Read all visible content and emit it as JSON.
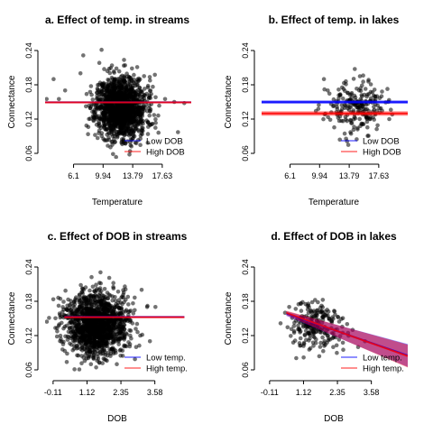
{
  "chart_data": [
    {
      "type": "scatter",
      "title": "a. Effect of temp. in streams",
      "xlabel": "Temperature",
      "ylabel": "Connectance",
      "xlim": [
        2.4,
        21.4
      ],
      "ylim": [
        0.06,
        0.24
      ],
      "xticks": [
        6.1,
        9.94,
        13.79,
        17.63
      ],
      "xtick_labels": [
        "6.1",
        "9.94",
        "13.79",
        "17.63"
      ],
      "yticks": [
        0.06,
        0.12,
        0.18,
        0.24
      ],
      "ytick_labels": [
        "0.06",
        "0.12",
        "0.18",
        "0.24"
      ],
      "legend": {
        "placement": "bottom-right",
        "entries": [
          {
            "label": "Low DOB",
            "color": "#0000ff"
          },
          {
            "label": "High DOB",
            "color": "#ff0000"
          }
        ]
      },
      "points": {
        "n": 1500,
        "seed": 11,
        "x_mean": 12.3,
        "x_sd": 1.6,
        "y_mean": 0.14,
        "y_sd": 0.027,
        "extra": [
          [
            2.6,
            0.155
          ],
          [
            3.5,
            0.19
          ],
          [
            4.2,
            0.155
          ],
          [
            5.0,
            0.17
          ],
          [
            18.0,
            0.155
          ],
          [
            19.2,
            0.15
          ],
          [
            20.5,
            0.148
          ],
          [
            7.0,
            0.2
          ]
        ]
      },
      "series": [
        {
          "name": "Low DOB",
          "color": "#0000ff",
          "x": [
            2.4,
            21.4
          ],
          "y": [
            0.1495,
            0.1495
          ],
          "lower": [
            0.1483,
            0.1483
          ],
          "upper": [
            0.1507,
            0.1507
          ]
        },
        {
          "name": "High DOB",
          "color": "#ff0000",
          "x": [
            2.4,
            21.4
          ],
          "y": [
            0.1492,
            0.1492
          ],
          "lower": [
            0.148,
            0.148
          ],
          "upper": [
            0.1504,
            0.1504
          ]
        }
      ]
    },
    {
      "type": "scatter",
      "title": "b. Effect of temp. in lakes",
      "xlabel": "Temperature",
      "ylabel": "Connectance",
      "xlim": [
        2.4,
        21.4
      ],
      "ylim": [
        0.06,
        0.24
      ],
      "xticks": [
        6.1,
        9.94,
        13.79,
        17.63
      ],
      "xtick_labels": [
        "6.1",
        "9.94",
        "13.79",
        "17.63"
      ],
      "yticks": [
        0.06,
        0.12,
        0.18,
        0.24
      ],
      "ytick_labels": [
        "0.06",
        "0.12",
        "0.18",
        "0.24"
      ],
      "legend": {
        "placement": "bottom-right",
        "entries": [
          {
            "label": "Low DOB",
            "color": "#0000ff"
          },
          {
            "label": "High DOB",
            "color": "#ff0000"
          }
        ]
      },
      "points": {
        "n": 230,
        "seed": 23,
        "x_mean": 14.6,
        "x_sd": 1.9,
        "y_mean": 0.14,
        "y_sd": 0.022,
        "extra": [
          [
            10.5,
            0.19
          ],
          [
            11.0,
            0.17
          ],
          [
            19.0,
            0.12
          ],
          [
            18.0,
            0.16
          ]
        ]
      },
      "series": [
        {
          "name": "Low DOB",
          "color": "#0000ff",
          "x": [
            2.4,
            21.4
          ],
          "y": [
            0.1498,
            0.1498
          ],
          "lower": [
            0.1468,
            0.1468
          ],
          "upper": [
            0.1528,
            0.1528
          ]
        },
        {
          "name": "High DOB",
          "color": "#ff0000",
          "x": [
            2.4,
            21.4
          ],
          "y": [
            0.1298,
            0.1298
          ],
          "lower": [
            0.126,
            0.126
          ],
          "upper": [
            0.1336,
            0.1336
          ]
        }
      ]
    },
    {
      "type": "scatter",
      "title": "c. Effect of DOB in streams",
      "xlabel": "DOB",
      "ylabel": "Connectance",
      "xlim": [
        -0.4,
        4.9
      ],
      "ylim": [
        0.06,
        0.24
      ],
      "xticks": [
        -0.11,
        1.12,
        2.35,
        3.58
      ],
      "xtick_labels": [
        "-0.11",
        "1.12",
        "2.35",
        "3.58"
      ],
      "yticks": [
        0.06,
        0.12,
        0.18,
        0.24
      ],
      "ytick_labels": [
        "0.06",
        "0.12",
        "0.18",
        "0.24"
      ],
      "legend": {
        "placement": "bottom-right",
        "entries": [
          {
            "label": "Low temp.",
            "color": "#0000ff"
          },
          {
            "label": "High temp.",
            "color": "#ff0000"
          }
        ]
      },
      "points": {
        "n": 1500,
        "seed": 37,
        "x_mean": 1.45,
        "x_sd": 0.55,
        "y_mean": 0.14,
        "y_sd": 0.027,
        "extra": [
          [
            3.1,
            0.2
          ],
          [
            3.3,
            0.17
          ],
          [
            3.6,
            0.17
          ],
          [
            2.9,
            0.1
          ],
          [
            3.05,
            0.12
          ],
          [
            3.4,
            0.11
          ],
          [
            2.2,
            0.07
          ],
          [
            1.0,
            0.2
          ]
        ]
      },
      "series": [
        {
          "name": "Low temp.",
          "color": "#0000ff",
          "x": [
            0.3,
            4.65
          ],
          "y": [
            0.1525,
            0.1525
          ],
          "lower": [
            0.1513,
            0.1513
          ],
          "upper": [
            0.1537,
            0.1537
          ]
        },
        {
          "name": "High temp.",
          "color": "#ff0000",
          "x": [
            0.3,
            4.65
          ],
          "y": [
            0.1522,
            0.1522
          ],
          "lower": [
            0.151,
            0.151
          ],
          "upper": [
            0.1534,
            0.1534
          ]
        }
      ]
    },
    {
      "type": "scatter",
      "title": "d. Effect of DOB in lakes",
      "xlabel": "DOB",
      "ylabel": "Connectance",
      "xlim": [
        -0.4,
        4.9
      ],
      "ylim": [
        0.06,
        0.24
      ],
      "xticks": [
        -0.11,
        1.12,
        2.35,
        3.58
      ],
      "xtick_labels": [
        "-0.11",
        "1.12",
        "2.35",
        "3.58"
      ],
      "yticks": [
        0.06,
        0.12,
        0.18,
        0.24
      ],
      "ytick_labels": [
        "0.06",
        "0.12",
        "0.18",
        "0.24"
      ],
      "legend": {
        "placement": "bottom-right",
        "entries": [
          {
            "label": "Low temp.",
            "color": "#0000ff"
          },
          {
            "label": "High temp.",
            "color": "#ff0000"
          }
        ]
      },
      "points": {
        "n": 230,
        "seed": 51,
        "x_mean": 1.55,
        "x_sd": 0.5,
        "y_mean": 0.135,
        "y_sd": 0.022,
        "extra": [
          [
            0.45,
            0.16
          ],
          [
            0.6,
            0.17
          ],
          [
            2.9,
            0.13
          ],
          [
            3.1,
            0.1
          ],
          [
            3.35,
            0.11
          ],
          [
            2.7,
            0.14
          ]
        ]
      },
      "series": [
        {
          "name": "Low temp.",
          "color": "#0000ff",
          "x": [
            0.5,
            4.9
          ],
          "y": [
            0.1585,
            0.0851
          ],
          "lower": [
            0.1545,
            0.0651
          ],
          "upper": [
            0.1625,
            0.1051
          ]
        },
        {
          "name": "High temp.",
          "color": "#ff0000",
          "x": [
            0.5,
            4.9
          ],
          "y": [
            0.1595,
            0.0841
          ],
          "lower": [
            0.1555,
            0.0641
          ],
          "upper": [
            0.1635,
            0.1041
          ]
        }
      ]
    }
  ]
}
